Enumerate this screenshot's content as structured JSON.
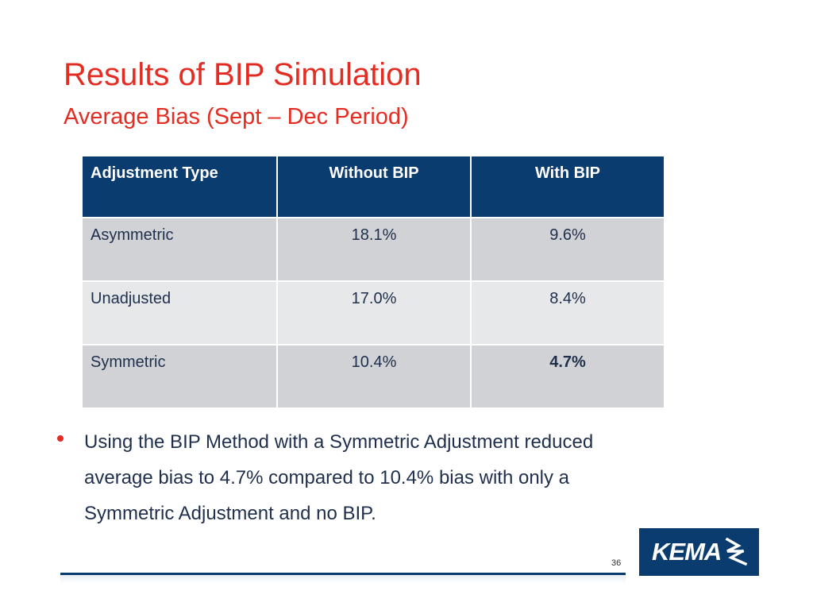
{
  "slide": {
    "title": "Results of BIP Simulation",
    "subtitle": "Average Bias (Sept – Dec Period)"
  },
  "table": {
    "headers": [
      "Adjustment Type",
      "Without BIP",
      "With BIP"
    ],
    "rows": [
      {
        "type": "Asymmetric",
        "without": "18.1%",
        "with": "9.6%"
      },
      {
        "type": "Unadjusted",
        "without": "17.0%",
        "with": "8.4%"
      },
      {
        "type": "Symmetric",
        "without": "10.4%",
        "with": "4.7%"
      }
    ]
  },
  "bullet": {
    "text": "Using the BIP Method with a Symmetric Adjustment reduced average bias to 4.7% compared to 10.4% bias with only a Symmetric Adjustment and no BIP."
  },
  "footer": {
    "page_number": "36",
    "logo_text": "KEMA"
  },
  "colors": {
    "title": "#e32d22",
    "header_bg": "#0b3c6f",
    "row_dark": "#d1d2d6",
    "row_light": "#e7e8ea",
    "text": "#1f2f4c",
    "bullet": "#e32d22"
  }
}
